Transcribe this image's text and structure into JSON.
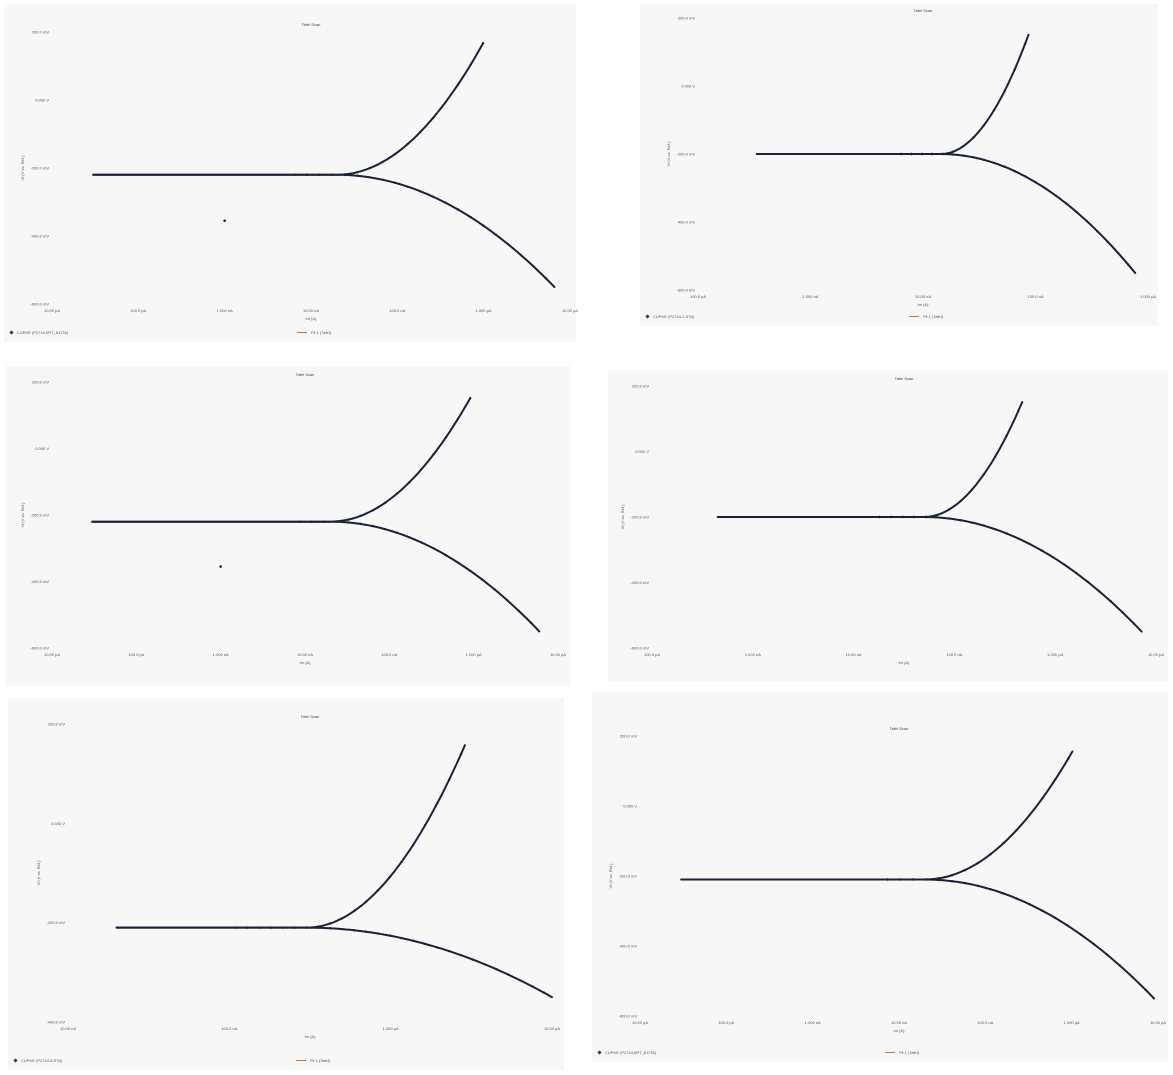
{
  "colors": {
    "data_curve": "#1b2238",
    "fit_line": "#cf6f3a",
    "panel_bg": "#f6f7f6",
    "legend_marker": "#2a3a6a"
  },
  "chart_data": [
    {
      "type": "line",
      "title": "Tafel Scan",
      "xlabel": "Im (A)",
      "ylabel": "Vf (V vs. Ref.)",
      "xscale": "log",
      "xlim": [
        1e-11,
        1e-05
      ],
      "ylim": [
        -0.6,
        0.2
      ],
      "xticks": [
        "10.00 pA",
        "100.0 pA",
        "1.000 nA",
        "10.00 nA",
        "100.0 nA",
        "1.000 µA",
        "10.00 µA"
      ],
      "yticks": [
        "200.0 mV",
        "0.000 V",
        "-200.0 mV",
        "-400.0 mV",
        "-600.0 mV"
      ],
      "ecorr": -0.22,
      "icorr": 2e-08,
      "stable_start": 3e-11,
      "x_end": 6.6e-06,
      "anodic_end": 1e-06,
      "outlier": [
        1e-09,
        -0.355
      ],
      "legend": {
        "left": "CURVE (P2744,0RT_8.DTA)",
        "right": "Fit 1 (Tafel)"
      },
      "series": [
        {
          "name": "Fit 1 (Tafel)"
        }
      ]
    },
    {
      "type": "line",
      "title": "Tafel Scan",
      "xlabel": "Im (A)",
      "ylabel": "Vf (V vs. Ref.)",
      "xscale": "log",
      "xlim": [
        1e-10,
        1e-05
      ],
      "ylim": [
        -0.6,
        0.2
      ],
      "xticks": [
        "100.0 pA",
        "1.000 nA",
        "10.00 nA",
        "100.0 nA",
        "1.000 µA"
      ],
      "yticks": [
        "200.0 mV",
        "0.000 V",
        "-200.0 mV",
        "-400.0 mV",
        "-600.0 mV"
      ],
      "ecorr": -0.2,
      "icorr": 5e-08,
      "stable_start": 4.5e-10,
      "x_end": 7.2e-06,
      "anodic_end": 5e-07,
      "legend": {
        "left": "CURVE (P2744-1.STA)",
        "right": "Fit 1 (Tafel)"
      },
      "series": [
        {
          "name": "Fit 1 (Tafel)"
        }
      ]
    },
    {
      "type": "line",
      "title": "Tafel Scan",
      "xlabel": "Im (A)",
      "ylabel": "Vf (V vs. Ref.)",
      "xscale": "log",
      "xlim": [
        1e-11,
        1e-05
      ],
      "ylim": [
        -0.6,
        0.2
      ],
      "xticks": [
        "10.00 pA",
        "100.0 pA",
        "1.000 nA",
        "10.00 nA",
        "100.0 nA",
        "1.000 µA",
        "10.00 µA"
      ],
      "yticks": [
        "200.0 mV",
        "0.000 V",
        "-200.0 mV",
        "-400.0 mV",
        "-600.0 mV"
      ],
      "ecorr": -0.22,
      "icorr": 2e-08,
      "stable_start": 3e-11,
      "x_end": 6e-06,
      "anodic_end": 1e-06,
      "outlier": [
        1e-09,
        -0.355
      ],
      "legend": null,
      "series": []
    },
    {
      "type": "line",
      "title": "Tafel Scan",
      "xlabel": "Im (A)",
      "ylabel": "Vf (V vs. Ref.)",
      "xscale": "log",
      "xlim": [
        1e-10,
        1e-05
      ],
      "ylim": [
        -0.6,
        0.2
      ],
      "xticks": [
        "100.0 pA",
        "1.000 nA",
        "10.00 nA",
        "100.0 nA",
        "1.000 µA",
        "10.00 µA"
      ],
      "yticks": [
        "200.0 mV",
        "0.000 V",
        "-200.0 mV",
        "-400.0 mV",
        "-600.0 mV"
      ],
      "ecorr": -0.2,
      "icorr": 5e-08,
      "stable_start": 4.5e-10,
      "x_end": 7.2e-06,
      "anodic_end": 5e-07,
      "legend": null,
      "series": []
    },
    {
      "type": "line",
      "title": "Tafel Scan",
      "xlabel": "Im (A)",
      "ylabel": "Vf (V vs. Ref.)",
      "xscale": "log",
      "xlim": [
        1e-08,
        1e-05
      ],
      "ylim": [
        -0.4,
        0.2
      ],
      "xticks": [
        "10.00 nA",
        "100.0 nA",
        "1.000 µA",
        "10.00 µA"
      ],
      "yticks": [
        "200.0 mV",
        "0.000 V",
        "-200.0 mV",
        "-400.0 mV"
      ],
      "ecorr": -0.21,
      "icorr": 3e-07,
      "stable_start": 2e-08,
      "x_end": 1e-05,
      "anodic_end": 3e-06,
      "legend": {
        "left": "CURVE (P2744-8.STA)",
        "right": "Fit 1 (Tafel)"
      },
      "series": [
        {
          "name": "Fit 1 (Tafel)"
        }
      ]
    },
    {
      "type": "line",
      "title": "Tafel Scan",
      "xlabel": "Im (A)",
      "ylabel": "Vf (V vs. Ref.)",
      "xscale": "log",
      "xlim": [
        1e-11,
        1e-05
      ],
      "ylim": [
        -0.6,
        0.2
      ],
      "xticks": [
        "10.00 pA",
        "100.0 pA",
        "1.000 nA",
        "10.00 nA",
        "100.0 nA",
        "1.000 µA",
        "10.00 µA"
      ],
      "yticks": [
        "200.0 mV",
        "0.000 V",
        "-200.0 mV",
        "-400.0 mV",
        "-600.0 mV"
      ],
      "ecorr": -0.21,
      "icorr": 2e-08,
      "stable_start": 3e-11,
      "x_end": 9e-06,
      "anodic_end": 1.1e-06,
      "legend": {
        "left": "CURVE (P2744,6RT_8.DTA)",
        "right": "Fit 1 (Tafel)"
      },
      "series": [
        {
          "name": "Fit 1 (Tafel)"
        }
      ]
    }
  ]
}
